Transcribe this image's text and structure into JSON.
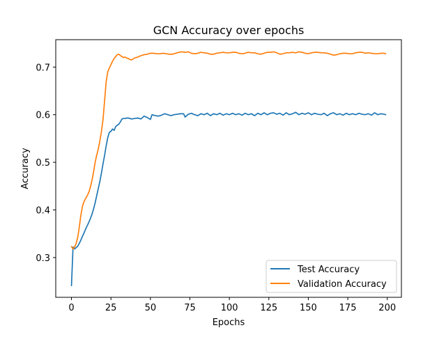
{
  "chart_data": {
    "type": "line",
    "title": "GCN Accuracy over epochs",
    "xlabel": "Epochs",
    "ylabel": "Accuracy",
    "xlim": [
      -9.95,
      208.95
    ],
    "ylim": [
      0.2165,
      0.7575
    ],
    "x_ticks": [
      0,
      25,
      50,
      75,
      100,
      125,
      150,
      175,
      200
    ],
    "y_ticks": [
      0.3,
      0.4,
      0.5,
      0.6,
      0.7
    ],
    "grid": false,
    "legend_position": "lower right",
    "colors": {
      "test": "#1f77b4",
      "validation": "#ff7f0e"
    },
    "series": [
      {
        "name": "Test Accuracy",
        "color": "#1f77b4",
        "anchors": [
          [
            0,
            0.241
          ],
          [
            1,
            0.322
          ],
          [
            2,
            0.318
          ],
          [
            3,
            0.321
          ],
          [
            4,
            0.324
          ],
          [
            5,
            0.33
          ],
          [
            6,
            0.337
          ],
          [
            7,
            0.345
          ],
          [
            8,
            0.352
          ],
          [
            9,
            0.36
          ],
          [
            10,
            0.367
          ],
          [
            11,
            0.374
          ],
          [
            12,
            0.382
          ],
          [
            13,
            0.391
          ],
          [
            14,
            0.402
          ],
          [
            15,
            0.415
          ],
          [
            16,
            0.43
          ],
          [
            17,
            0.445
          ],
          [
            18,
            0.46
          ],
          [
            19,
            0.478
          ],
          [
            20,
            0.497
          ],
          [
            21,
            0.515
          ],
          [
            22,
            0.535
          ],
          [
            23,
            0.552
          ],
          [
            24,
            0.563
          ],
          [
            25,
            0.565
          ],
          [
            26,
            0.57
          ],
          [
            27,
            0.567
          ],
          [
            28,
            0.575
          ],
          [
            29,
            0.578
          ],
          [
            30,
            0.58
          ],
          [
            31,
            0.585
          ],
          [
            32,
            0.591
          ],
          [
            33,
            0.592
          ],
          [
            34,
            0.592
          ],
          [
            35,
            0.593
          ],
          [
            36,
            0.593
          ],
          [
            38,
            0.591
          ],
          [
            40,
            0.592
          ],
          [
            42,
            0.593
          ],
          [
            44,
            0.591
          ],
          [
            46,
            0.597
          ],
          [
            48,
            0.594
          ],
          [
            50,
            0.59
          ],
          [
            51,
            0.6
          ],
          [
            53,
            0.598
          ],
          [
            55,
            0.597
          ],
          [
            57,
            0.599
          ],
          [
            59,
            0.602
          ],
          [
            61,
            0.6
          ],
          [
            63,
            0.598
          ],
          [
            65,
            0.6
          ],
          [
            67,
            0.601
          ],
          [
            69,
            0.602
          ],
          [
            71,
            0.602
          ],
          [
            72,
            0.595
          ],
          [
            74,
            0.601
          ],
          [
            76,
            0.603
          ],
          [
            78,
            0.6
          ],
          [
            80,
            0.598
          ],
          [
            82,
            0.602
          ],
          [
            84,
            0.6
          ],
          [
            86,
            0.603
          ],
          [
            88,
            0.598
          ],
          [
            90,
            0.602
          ],
          [
            92,
            0.6
          ],
          [
            94,
            0.603
          ],
          [
            96,
            0.599
          ],
          [
            98,
            0.602
          ],
          [
            100,
            0.6
          ],
          [
            102,
            0.603
          ],
          [
            104,
            0.6
          ],
          [
            106,
            0.602
          ],
          [
            108,
            0.599
          ],
          [
            110,
            0.603
          ],
          [
            112,
            0.6
          ],
          [
            114,
            0.602
          ],
          [
            116,
            0.598
          ],
          [
            118,
            0.603
          ],
          [
            120,
            0.6
          ],
          [
            122,
            0.604
          ],
          [
            124,
            0.6
          ],
          [
            126,
            0.603
          ],
          [
            128,
            0.604
          ],
          [
            130,
            0.601
          ],
          [
            132,
            0.603
          ],
          [
            134,
            0.599
          ],
          [
            136,
            0.604
          ],
          [
            138,
            0.6
          ],
          [
            140,
            0.602
          ],
          [
            142,
            0.605
          ],
          [
            144,
            0.6
          ],
          [
            146,
            0.603
          ],
          [
            148,
            0.601
          ],
          [
            150,
            0.604
          ],
          [
            152,
            0.6
          ],
          [
            154,
            0.603
          ],
          [
            156,
            0.601
          ],
          [
            158,
            0.6
          ],
          [
            160,
            0.603
          ],
          [
            162,
            0.598
          ],
          [
            164,
            0.602
          ],
          [
            166,
            0.604
          ],
          [
            168,
            0.6
          ],
          [
            170,
            0.602
          ],
          [
            172,
            0.599
          ],
          [
            174,
            0.603
          ],
          [
            176,
            0.6
          ],
          [
            178,
            0.602
          ],
          [
            180,
            0.6
          ],
          [
            182,
            0.603
          ],
          [
            184,
            0.601
          ],
          [
            186,
            0.6
          ],
          [
            188,
            0.602
          ],
          [
            190,
            0.599
          ],
          [
            192,
            0.604
          ],
          [
            194,
            0.6
          ],
          [
            196,
            0.602
          ],
          [
            198,
            0.601
          ],
          [
            199,
            0.6
          ]
        ]
      },
      {
        "name": "Validation Accuracy",
        "color": "#ff7f0e",
        "anchors": [
          [
            0,
            0.323
          ],
          [
            1,
            0.318
          ],
          [
            2,
            0.322
          ],
          [
            3,
            0.33
          ],
          [
            4,
            0.343
          ],
          [
            5,
            0.365
          ],
          [
            6,
            0.39
          ],
          [
            7,
            0.408
          ],
          [
            8,
            0.418
          ],
          [
            9,
            0.424
          ],
          [
            10,
            0.43
          ],
          [
            11,
            0.437
          ],
          [
            12,
            0.448
          ],
          [
            13,
            0.462
          ],
          [
            14,
            0.48
          ],
          [
            15,
            0.5
          ],
          [
            16,
            0.515
          ],
          [
            17,
            0.528
          ],
          [
            18,
            0.545
          ],
          [
            19,
            0.565
          ],
          [
            20,
            0.59
          ],
          [
            21,
            0.63
          ],
          [
            22,
            0.67
          ],
          [
            23,
            0.69
          ],
          [
            24,
            0.698
          ],
          [
            25,
            0.705
          ],
          [
            26,
            0.712
          ],
          [
            27,
            0.718
          ],
          [
            28,
            0.722
          ],
          [
            29,
            0.726
          ],
          [
            30,
            0.727
          ],
          [
            31,
            0.724
          ],
          [
            32,
            0.722
          ],
          [
            33,
            0.72
          ],
          [
            34,
            0.721
          ],
          [
            35,
            0.719
          ],
          [
            36,
            0.718
          ],
          [
            37,
            0.716
          ],
          [
            38,
            0.715
          ],
          [
            39,
            0.717
          ],
          [
            40,
            0.719
          ],
          [
            42,
            0.721
          ],
          [
            44,
            0.724
          ],
          [
            46,
            0.726
          ],
          [
            48,
            0.727
          ],
          [
            50,
            0.729
          ],
          [
            52,
            0.729
          ],
          [
            54,
            0.728
          ],
          [
            56,
            0.728
          ],
          [
            58,
            0.729
          ],
          [
            60,
            0.728
          ],
          [
            62,
            0.727
          ],
          [
            64,
            0.727
          ],
          [
            66,
            0.729
          ],
          [
            68,
            0.731
          ],
          [
            70,
            0.732
          ],
          [
            72,
            0.731
          ],
          [
            74,
            0.732
          ],
          [
            76,
            0.729
          ],
          [
            78,
            0.728
          ],
          [
            80,
            0.729
          ],
          [
            82,
            0.731
          ],
          [
            84,
            0.73
          ],
          [
            86,
            0.729
          ],
          [
            88,
            0.727
          ],
          [
            90,
            0.727
          ],
          [
            92,
            0.729
          ],
          [
            94,
            0.73
          ],
          [
            96,
            0.731
          ],
          [
            98,
            0.73
          ],
          [
            100,
            0.73
          ],
          [
            102,
            0.731
          ],
          [
            104,
            0.731
          ],
          [
            106,
            0.729
          ],
          [
            108,
            0.728
          ],
          [
            110,
            0.729
          ],
          [
            112,
            0.731
          ],
          [
            114,
            0.73
          ],
          [
            116,
            0.73
          ],
          [
            118,
            0.728
          ],
          [
            120,
            0.727
          ],
          [
            122,
            0.729
          ],
          [
            124,
            0.731
          ],
          [
            126,
            0.731
          ],
          [
            128,
            0.732
          ],
          [
            130,
            0.73
          ],
          [
            132,
            0.727
          ],
          [
            134,
            0.728
          ],
          [
            136,
            0.73
          ],
          [
            138,
            0.73
          ],
          [
            140,
            0.731
          ],
          [
            142,
            0.73
          ],
          [
            144,
            0.732
          ],
          [
            146,
            0.731
          ],
          [
            148,
            0.729
          ],
          [
            150,
            0.728
          ],
          [
            152,
            0.73
          ],
          [
            154,
            0.731
          ],
          [
            156,
            0.731
          ],
          [
            158,
            0.73
          ],
          [
            160,
            0.73
          ],
          [
            162,
            0.729
          ],
          [
            164,
            0.727
          ],
          [
            166,
            0.725
          ],
          [
            168,
            0.726
          ],
          [
            170,
            0.728
          ],
          [
            172,
            0.729
          ],
          [
            174,
            0.729
          ],
          [
            176,
            0.728
          ],
          [
            178,
            0.728
          ],
          [
            180,
            0.73
          ],
          [
            182,
            0.731
          ],
          [
            184,
            0.731
          ],
          [
            186,
            0.729
          ],
          [
            188,
            0.73
          ],
          [
            190,
            0.729
          ],
          [
            192,
            0.728
          ],
          [
            194,
            0.728
          ],
          [
            196,
            0.729
          ],
          [
            198,
            0.729
          ],
          [
            199,
            0.728
          ]
        ]
      }
    ]
  }
}
